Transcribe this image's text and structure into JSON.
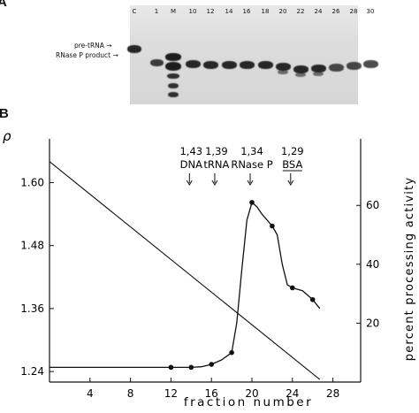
{
  "figure": {
    "panel_a_label": "A",
    "panel_b_label": "B"
  },
  "gel": {
    "lanes": [
      "C",
      "1",
      "M",
      "10",
      "12",
      "14",
      "16",
      "18",
      "20",
      "22",
      "24",
      "26",
      "28",
      "30"
    ],
    "markers": {
      "pre_trna": "pre-tRNA",
      "product": "RNase P product"
    }
  },
  "chart_data": {
    "type": "line",
    "xlabel": "fraction number",
    "ylabel_left": "ρ",
    "ylabel_right": "percent processing activity",
    "x_ticks": [
      4,
      8,
      12,
      16,
      20,
      24,
      28
    ],
    "y_left_ticks": [
      1.24,
      1.36,
      1.48,
      1.6
    ],
    "y_left_tick_labels": [
      "1.24",
      "1.36",
      "1.48",
      "1.60"
    ],
    "y_right_ticks": [
      20,
      40,
      60
    ],
    "xlim": [
      0,
      29
    ],
    "ylim_left": [
      1.22,
      1.68
    ],
    "ylim_right": [
      0,
      82
    ],
    "series": [
      {
        "values": [
          [
            12,
            5
          ],
          [
            14,
            5
          ],
          [
            16,
            6
          ],
          [
            18,
            10
          ],
          [
            20,
            61
          ],
          [
            22,
            53
          ],
          [
            24,
            32
          ],
          [
            26,
            28
          ]
        ],
        "axis": "right",
        "points": [
          [
            12,
            5
          ],
          [
            14,
            5
          ],
          [
            16,
            6
          ],
          [
            18,
            10
          ],
          [
            20,
            61
          ],
          [
            22,
            53
          ],
          [
            24,
            32
          ],
          [
            26,
            28
          ]
        ],
        "curve": [
          [
            0,
            5
          ],
          [
            12,
            5
          ],
          [
            14,
            5
          ],
          [
            15,
            5.2
          ],
          [
            16,
            6
          ],
          [
            17,
            7.5
          ],
          [
            18,
            10
          ],
          [
            18.5,
            20
          ],
          [
            19,
            38
          ],
          [
            19.5,
            55
          ],
          [
            20,
            61
          ],
          [
            20.5,
            59.5
          ],
          [
            21,
            57
          ],
          [
            22,
            53
          ],
          [
            22.5,
            50
          ],
          [
            23,
            40
          ],
          [
            23.5,
            33
          ],
          [
            24,
            32
          ],
          [
            25,
            31
          ],
          [
            26,
            28
          ],
          [
            26.7,
            25
          ]
        ]
      },
      {
        "axis": "left",
        "line": [
          [
            0,
            1.64
          ],
          [
            26.7,
            1.225
          ]
        ]
      }
    ],
    "annotations": [
      {
        "x": 14,
        "density": "1,43",
        "label": "DNA"
      },
      {
        "x": 16.5,
        "density": "1,39",
        "label": "tRNA"
      },
      {
        "x": 20,
        "density": "1,34",
        "label": "RNase P"
      },
      {
        "x": 24,
        "density": "1,29",
        "label": "BSA"
      }
    ]
  }
}
